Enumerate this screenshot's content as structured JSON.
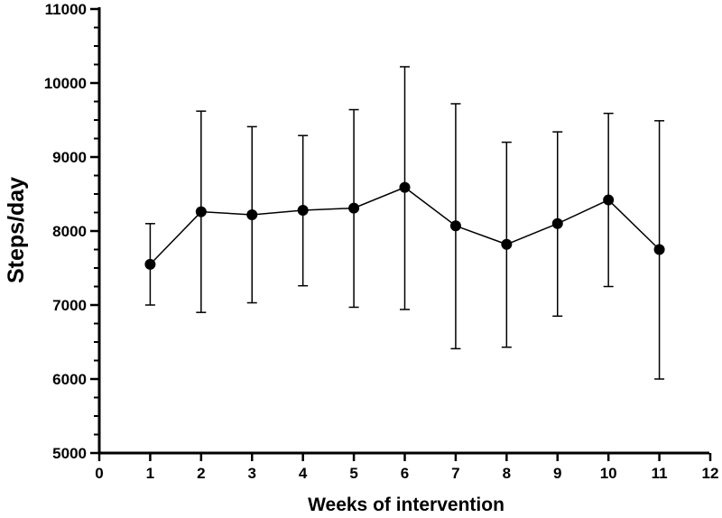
{
  "chart_data": {
    "type": "line",
    "xlabel": "Weeks of intervention",
    "ylabel": "Steps/day",
    "xlim": [
      0,
      12
    ],
    "ylim": [
      5000,
      11000
    ],
    "xticks": [
      0,
      1,
      2,
      3,
      4,
      5,
      6,
      7,
      8,
      9,
      10,
      11,
      12
    ],
    "yticks": [
      5000,
      6000,
      7000,
      8000,
      9000,
      10000,
      11000
    ],
    "grid": false,
    "series": [
      {
        "x": [
          1,
          2,
          3,
          4,
          5,
          6,
          7,
          8,
          9,
          10,
          11
        ],
        "values": [
          7550,
          8260,
          8220,
          8280,
          8310,
          8590,
          8070,
          7820,
          8100,
          8420,
          7750
        ],
        "error_low": [
          7000,
          6900,
          7030,
          7260,
          6970,
          6940,
          6410,
          6430,
          6850,
          7250,
          6000
        ],
        "error_high": [
          8100,
          9620,
          9410,
          9290,
          9640,
          10220,
          9720,
          9200,
          9340,
          9590,
          9490
        ]
      }
    ]
  }
}
